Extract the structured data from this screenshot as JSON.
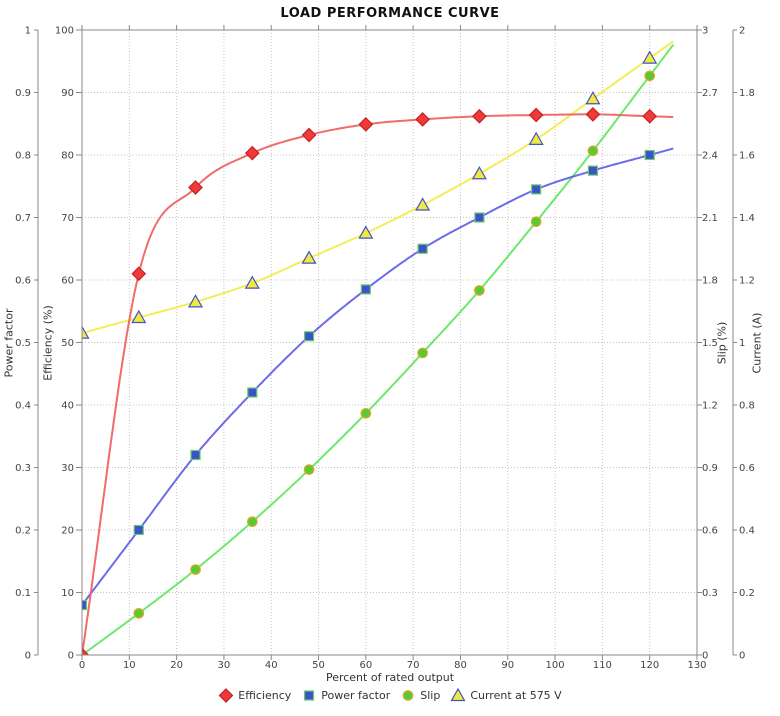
{
  "title": "LOAD PERFORMANCE CURVE",
  "chart_data": {
    "type": "line",
    "title": "LOAD PERFORMANCE CURVE",
    "xlabel": "Percent of rated output",
    "grid": true,
    "legend_position": "bottom",
    "x_axis": {
      "min": 0,
      "max": 130,
      "tick_step": 10
    },
    "y_axes": [
      {
        "id": "power_factor",
        "label": "Power factor",
        "side": "left",
        "min": 0,
        "max": 1,
        "tick_step": 0.1
      },
      {
        "id": "efficiency",
        "label": "Efficiency (%)",
        "side": "left",
        "min": 0,
        "max": 100,
        "tick_step": 10
      },
      {
        "id": "slip",
        "label": "Slip (%)",
        "side": "right",
        "min": 0,
        "max": 3,
        "tick_step": 0.3
      },
      {
        "id": "current",
        "label": "Current (A)",
        "side": "right",
        "min": 0,
        "max": 2,
        "tick_step": 0.2
      }
    ],
    "x": [
      0,
      12,
      24,
      36,
      48,
      60,
      72,
      84,
      96,
      108,
      120
    ],
    "trend_lines_extend_to_x": 125,
    "series": [
      {
        "name": "Efficiency",
        "axis": "efficiency",
        "marker": "diamond",
        "line_color": "#f15b5b",
        "marker_fill": "#f03a3a",
        "marker_stroke": "#c22020",
        "values": [
          0,
          61,
          74.8,
          80.3,
          83.2,
          84.9,
          85.7,
          86.2,
          86.4,
          86.5,
          86.2
        ]
      },
      {
        "name": "Power factor",
        "axis": "power_factor",
        "marker": "square",
        "line_color": "#5c5ce6",
        "marker_fill": "#3c52cc",
        "marker_stroke": "#66cc66",
        "values": [
          0.08,
          0.2,
          0.32,
          0.42,
          0.51,
          0.585,
          0.65,
          0.7,
          0.745,
          0.775,
          0.8
        ]
      },
      {
        "name": "Slip",
        "axis": "slip",
        "marker": "circle",
        "line_color": "#5de65d",
        "marker_fill": "#55cc33",
        "marker_stroke": "#e6a42b",
        "values": [
          0,
          0.2,
          0.41,
          0.64,
          0.89,
          1.16,
          1.45,
          1.75,
          2.08,
          2.42,
          2.78
        ]
      },
      {
        "name": "Current at 575 V",
        "axis": "current",
        "marker": "triangle",
        "line_color": "#f2ec45",
        "marker_fill": "#f2e93e",
        "marker_stroke": "#4052cc",
        "values": [
          1.03,
          1.08,
          1.13,
          1.19,
          1.27,
          1.35,
          1.44,
          1.54,
          1.65,
          1.78,
          1.91
        ]
      }
    ],
    "colors": {
      "grid": "#c4c4c4",
      "plot_border": "#888888",
      "tick_text": "#444444"
    }
  }
}
